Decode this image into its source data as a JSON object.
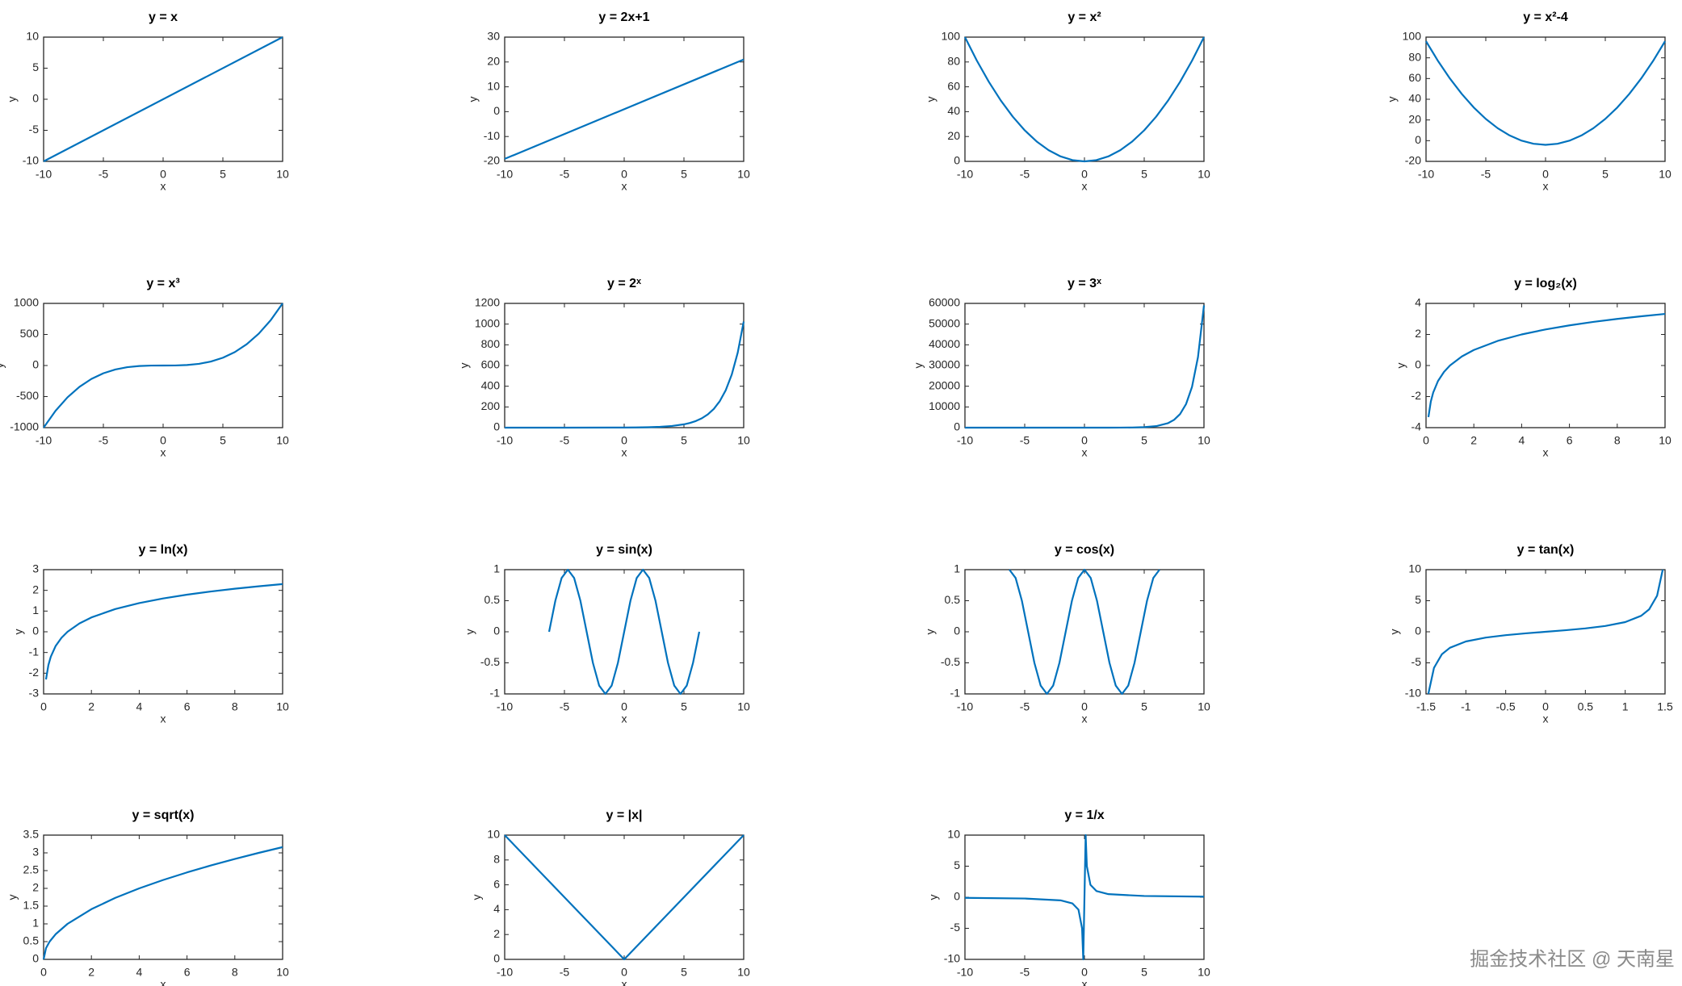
{
  "chart_data": [
    {
      "type": "line",
      "title": "y = x",
      "x_label": "x",
      "y_label": "y",
      "x": [
        -10,
        10
      ],
      "values": [
        -10,
        10
      ],
      "color": "#0072bd",
      "xlim": [
        -10,
        10
      ],
      "ylim": [
        -10,
        10
      ],
      "xticks": [
        -10,
        -5,
        0,
        5,
        10
      ],
      "yticks": [
        -10,
        -5,
        0,
        5,
        10
      ]
    },
    {
      "type": "line",
      "title": "y = 2x+1",
      "x_label": "x",
      "y_label": "y",
      "x": [
        -10,
        10
      ],
      "values": [
        -19,
        21
      ],
      "color": "#0072bd",
      "xlim": [
        -10,
        10
      ],
      "ylim": [
        -20,
        30
      ],
      "xticks": [
        -10,
        -5,
        0,
        5,
        10
      ],
      "yticks": [
        -20,
        -10,
        0,
        10,
        20,
        30
      ]
    },
    {
      "type": "line",
      "title": "y = x²",
      "x_label": "x",
      "y_label": "y",
      "x": [
        -10,
        -9,
        -8,
        -7,
        -6,
        -5,
        -4,
        -3,
        -2,
        -1,
        0,
        1,
        2,
        3,
        4,
        5,
        6,
        7,
        8,
        9,
        10
      ],
      "values": [
        100,
        81,
        64,
        49,
        36,
        25,
        16,
        9,
        4,
        1,
        0,
        1,
        4,
        9,
        16,
        25,
        36,
        49,
        64,
        81,
        100
      ],
      "color": "#0072bd",
      "xlim": [
        -10,
        10
      ],
      "ylim": [
        0,
        100
      ],
      "xticks": [
        -10,
        -5,
        0,
        5,
        10
      ],
      "yticks": [
        0,
        20,
        40,
        60,
        80,
        100
      ]
    },
    {
      "type": "line",
      "title": "y = x²-4",
      "x_label": "x",
      "y_label": "y",
      "x": [
        -10,
        -9,
        -8,
        -7,
        -6,
        -5,
        -4,
        -3,
        -2,
        -1,
        0,
        1,
        2,
        3,
        4,
        5,
        6,
        7,
        8,
        9,
        10
      ],
      "values": [
        96,
        77,
        60,
        45,
        32,
        21,
        12,
        5,
        0,
        -3,
        -4,
        -3,
        0,
        5,
        12,
        21,
        32,
        45,
        60,
        77,
        96
      ],
      "color": "#0072bd",
      "xlim": [
        -10,
        10
      ],
      "ylim": [
        -20,
        100
      ],
      "xticks": [
        -10,
        -5,
        0,
        5,
        10
      ],
      "yticks": [
        -20,
        0,
        20,
        40,
        60,
        80,
        100
      ]
    },
    {
      "type": "line",
      "title": "y = x³",
      "x_label": "x",
      "y_label": "y",
      "x": [
        -10,
        -9,
        -8,
        -7,
        -6,
        -5,
        -4,
        -3,
        -2,
        -1,
        0,
        1,
        2,
        3,
        4,
        5,
        6,
        7,
        8,
        9,
        10
      ],
      "values": [
        -1000,
        -729,
        -512,
        -343,
        -216,
        -125,
        -64,
        -27,
        -8,
        -1,
        0,
        1,
        8,
        27,
        64,
        125,
        216,
        343,
        512,
        729,
        1000
      ],
      "color": "#0072bd",
      "xlim": [
        -10,
        10
      ],
      "ylim": [
        -1000,
        1000
      ],
      "xticks": [
        -10,
        -5,
        0,
        5,
        10
      ],
      "yticks": [
        -1000,
        -500,
        0,
        500,
        1000
      ]
    },
    {
      "type": "line",
      "title": "y = 2ˣ",
      "x_label": "x",
      "y_label": "y",
      "x": [
        -10,
        -5,
        0,
        1,
        2,
        3,
        4,
        5,
        5.5,
        6,
        6.5,
        7,
        7.5,
        8,
        8.5,
        9,
        9.5,
        10
      ],
      "values": [
        0.001,
        0.031,
        1,
        2,
        4,
        8,
        16,
        32,
        45.25,
        64,
        90.51,
        128,
        181.02,
        256,
        362.04,
        512,
        724.08,
        1024
      ],
      "color": "#0072bd",
      "xlim": [
        -10,
        10
      ],
      "ylim": [
        0,
        1200
      ],
      "xticks": [
        -10,
        -5,
        0,
        5,
        10
      ],
      "yticks": [
        0,
        200,
        400,
        600,
        800,
        1000,
        1200
      ]
    },
    {
      "type": "line",
      "title": "y = 3ˣ",
      "x_label": "x",
      "y_label": "y",
      "x": [
        -10,
        -5,
        0,
        1,
        2,
        3,
        4,
        5,
        6,
        7,
        7.5,
        8,
        8.5,
        9,
        9.5,
        10
      ],
      "values": [
        0,
        0.004,
        1,
        3,
        9,
        27,
        81,
        243,
        729,
        2187,
        3787.6,
        6561,
        11364,
        19683,
        34092,
        59049
      ],
      "color": "#0072bd",
      "xlim": [
        -10,
        10
      ],
      "ylim": [
        0,
        60000
      ],
      "xticks": [
        -10,
        -5,
        0,
        5,
        10
      ],
      "yticks": [
        0,
        10000,
        20000,
        30000,
        40000,
        50000,
        60000
      ]
    },
    {
      "type": "line",
      "title": "y = log₂(x)",
      "x_label": "x",
      "y_label": "y",
      "x": [
        0.1,
        0.2,
        0.3,
        0.5,
        0.75,
        1,
        1.5,
        2,
        3,
        4,
        5,
        6,
        7,
        8,
        9,
        10
      ],
      "values": [
        -3.32,
        -2.32,
        -1.74,
        -1,
        -0.415,
        0,
        0.585,
        1,
        1.585,
        2,
        2.322,
        2.585,
        2.807,
        3,
        3.17,
        3.322
      ],
      "color": "#0072bd",
      "xlim": [
        0,
        10
      ],
      "ylim": [
        -4,
        4
      ],
      "xticks": [
        0,
        2,
        4,
        6,
        8,
        10
      ],
      "yticks": [
        -4,
        -2,
        0,
        2,
        4
      ]
    },
    {
      "type": "line",
      "title": "y = ln(x)",
      "x_label": "x",
      "y_label": "y",
      "x": [
        0.1,
        0.2,
        0.3,
        0.5,
        0.75,
        1,
        1.5,
        2,
        3,
        4,
        5,
        6,
        7,
        8,
        9,
        10
      ],
      "values": [
        -2.303,
        -1.609,
        -1.204,
        -0.693,
        -0.288,
        0,
        0.405,
        0.693,
        1.099,
        1.386,
        1.609,
        1.792,
        1.946,
        2.079,
        2.197,
        2.303
      ],
      "color": "#0072bd",
      "xlim": [
        0,
        10
      ],
      "ylim": [
        -3,
        3
      ],
      "xticks": [
        0,
        2,
        4,
        6,
        8,
        10
      ],
      "yticks": [
        -3,
        -2,
        -1,
        0,
        1,
        2,
        3
      ]
    },
    {
      "type": "line",
      "title": "y = sin(x)",
      "x_label": "x",
      "y_label": "y",
      "x": [
        -6.283,
        -5.76,
        -5.236,
        -4.712,
        -4.189,
        -3.665,
        -3.142,
        -2.618,
        -2.094,
        -1.571,
        -1.047,
        -0.524,
        0,
        0.524,
        1.047,
        1.571,
        2.094,
        2.618,
        3.142,
        3.665,
        4.189,
        4.712,
        5.236,
        5.76,
        6.283
      ],
      "values": [
        0,
        0.5,
        0.866,
        1,
        0.866,
        0.5,
        0,
        -0.5,
        -0.866,
        -1,
        -0.866,
        -0.5,
        0,
        0.5,
        0.866,
        1,
        0.866,
        0.5,
        0,
        -0.5,
        -0.866,
        -1,
        -0.866,
        -0.5,
        0
      ],
      "color": "#0072bd",
      "xlim": [
        -10,
        10
      ],
      "ylim": [
        -1,
        1
      ],
      "xticks": [
        -10,
        -5,
        0,
        5,
        10
      ],
      "yticks": [
        -1,
        -0.5,
        0,
        0.5,
        1
      ]
    },
    {
      "type": "line",
      "title": "y = cos(x)",
      "x_label": "x",
      "y_label": "y",
      "x": [
        -6.283,
        -5.76,
        -5.236,
        -4.712,
        -4.189,
        -3.665,
        -3.142,
        -2.618,
        -2.094,
        -1.571,
        -1.047,
        -0.524,
        0,
        0.524,
        1.047,
        1.571,
        2.094,
        2.618,
        3.142,
        3.665,
        4.189,
        4.712,
        5.236,
        5.76,
        6.283
      ],
      "values": [
        1,
        0.866,
        0.5,
        0,
        -0.5,
        -0.866,
        -1,
        -0.866,
        -0.5,
        0,
        0.5,
        0.866,
        1,
        0.866,
        0.5,
        0,
        -0.5,
        -0.866,
        -1,
        -0.866,
        -0.5,
        0,
        0.5,
        0.866,
        1
      ],
      "color": "#0072bd",
      "xlim": [
        -10,
        10
      ],
      "ylim": [
        -1,
        1
      ],
      "xticks": [
        -10,
        -5,
        0,
        5,
        10
      ],
      "yticks": [
        -1,
        -0.5,
        0,
        0.5,
        1
      ]
    },
    {
      "type": "line",
      "title": "y = tan(x)",
      "x_label": "x",
      "y_label": "y",
      "x": [
        -1.471,
        -1.4,
        -1.3,
        -1.2,
        -1,
        -0.75,
        -0.5,
        -0.25,
        0,
        0.25,
        0.5,
        0.75,
        1,
        1.2,
        1.3,
        1.4,
        1.471
      ],
      "values": [
        -10,
        -5.798,
        -3.602,
        -2.572,
        -1.557,
        -0.932,
        -0.546,
        -0.255,
        0,
        0.255,
        0.546,
        0.932,
        1.557,
        2.572,
        3.602,
        5.798,
        10
      ],
      "color": "#0072bd",
      "xlim": [
        -1.5,
        1.5
      ],
      "ylim": [
        -10,
        10
      ],
      "xticks": [
        -1.5,
        -1,
        -0.5,
        0,
        0.5,
        1,
        1.5
      ],
      "yticks": [
        -10,
        -5,
        0,
        5,
        10
      ]
    },
    {
      "type": "line",
      "title": "y = sqrt(x)",
      "x_label": "x",
      "y_label": "y",
      "x": [
        0,
        0.1,
        0.25,
        0.5,
        1,
        2,
        3,
        4,
        5,
        6,
        7,
        8,
        9,
        10
      ],
      "values": [
        0,
        0.316,
        0.5,
        0.707,
        1,
        1.414,
        1.732,
        2,
        2.236,
        2.449,
        2.646,
        2.828,
        3,
        3.162
      ],
      "color": "#0072bd",
      "xlim": [
        0,
        10
      ],
      "ylim": [
        0,
        3.5
      ],
      "xticks": [
        0,
        2,
        4,
        6,
        8,
        10
      ],
      "yticks": [
        0,
        0.5,
        1,
        1.5,
        2,
        2.5,
        3,
        3.5
      ]
    },
    {
      "type": "line",
      "title": "y = |x|",
      "x_label": "x",
      "y_label": "y",
      "x": [
        -10,
        0,
        10
      ],
      "values": [
        10,
        0,
        10
      ],
      "color": "#0072bd",
      "xlim": [
        -10,
        10
      ],
      "ylim": [
        0,
        10
      ],
      "xticks": [
        -10,
        -5,
        0,
        5,
        10
      ],
      "yticks": [
        0,
        2,
        4,
        6,
        8,
        10
      ]
    },
    {
      "type": "line",
      "title": "y = 1/x",
      "x_label": "x",
      "y_label": "y",
      "x": [
        -10,
        -5,
        -2,
        -1,
        -0.5,
        -0.2,
        -0.1,
        0.1,
        0.2,
        0.5,
        1,
        2,
        5,
        10
      ],
      "values": [
        -0.1,
        -0.2,
        -0.5,
        -1,
        -2,
        -5,
        -10,
        10,
        5,
        2,
        1,
        0.5,
        0.2,
        0.1
      ],
      "color": "#0072bd",
      "xlim": [
        -10,
        10
      ],
      "ylim": [
        -10,
        10
      ],
      "xticks": [
        -10,
        -5,
        0,
        5,
        10
      ],
      "yticks": [
        -10,
        -5,
        0,
        5,
        10
      ]
    }
  ],
  "watermark": "掘金技术社区 @ 天南星"
}
